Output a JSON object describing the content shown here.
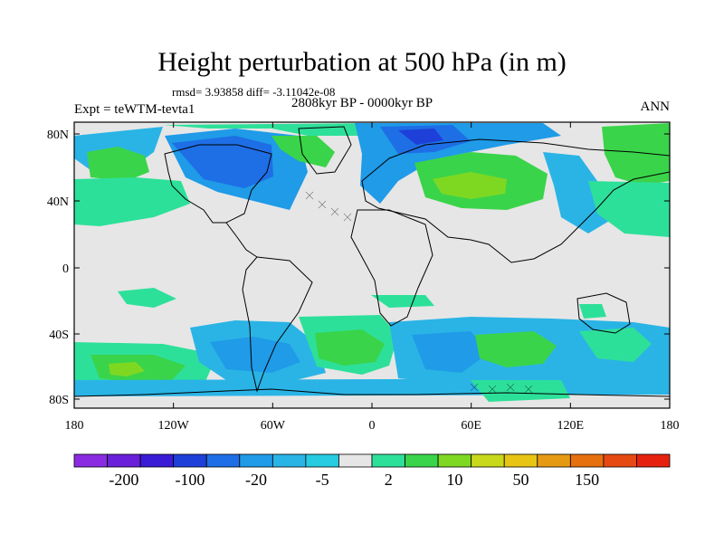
{
  "title": "Height perturbation at 500 hPa (in m)",
  "stats_line": "rmsd= 3.93858 diff= -3.11042e-08",
  "period": "2808kyr BP - 0000kyr BP",
  "experiment": "Expt = teWTM-tevta1",
  "season": "ANN",
  "y_ticks": [
    "80N",
    "40N",
    "0",
    "40S",
    "80S"
  ],
  "x_ticks": [
    "180",
    "120W",
    "60W",
    "0",
    "60E",
    "120E",
    "180"
  ],
  "colorbar": {
    "colors": [
      "#8a2be2",
      "#6a1fd8",
      "#3a1bd6",
      "#1e3fd8",
      "#1e6ee6",
      "#1f9be8",
      "#2ab4e6",
      "#26cbe0",
      "#e6e6e6",
      "#2de09a",
      "#3ad44a",
      "#7ed822",
      "#c8d81a",
      "#e8c414",
      "#e69a14",
      "#e6700e",
      "#e64a12",
      "#e6220f"
    ],
    "labels": [
      "-200",
      "-100",
      "-20",
      "-5",
      "2",
      "10",
      "50",
      "150"
    ]
  },
  "map_colors": {
    "neutral": "#e6e6e6",
    "light_blue": "#2ab4e6",
    "blue": "#1f9be8",
    "dark_blue": "#1e6ee6",
    "deep_blue": "#1e3fd8",
    "teal": "#2de09a",
    "green": "#3ad44a",
    "yellow_green": "#7ed822",
    "yellow": "#c8d81a",
    "coast": "#000000"
  }
}
